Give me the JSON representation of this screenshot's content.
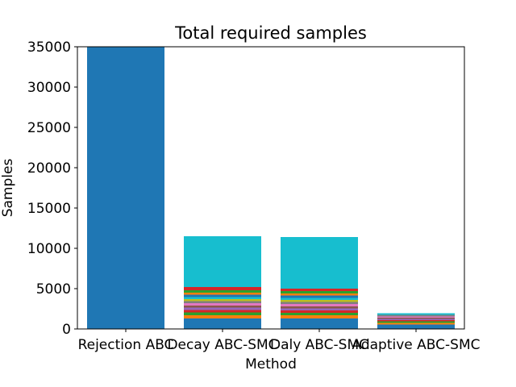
{
  "chart_data": {
    "type": "bar",
    "stacked": true,
    "title": "Total required samples",
    "xlabel": "Method",
    "ylabel": "Samples",
    "ylim": [
      0,
      35000
    ],
    "yticks": [
      0,
      5000,
      10000,
      15000,
      20000,
      25000,
      30000,
      35000
    ],
    "grid": false,
    "categories": [
      "Rejection ABC",
      "Decay ABC-SMC",
      "Daly ABC-SMC",
      "Adaptive ABC-SMC"
    ],
    "stacks": [
      [
        35200
      ],
      [
        1300,
        400,
        350,
        300,
        300,
        250,
        300,
        250,
        250,
        250,
        300,
        250,
        300,
        400,
        6300
      ],
      [
        1300,
        400,
        300,
        300,
        250,
        250,
        300,
        250,
        250,
        250,
        300,
        250,
        300,
        300,
        6400
      ],
      [
        550,
        200,
        200,
        150,
        150,
        150,
        150,
        200,
        200
      ]
    ],
    "colors": {
      "cycle": [
        "#1f77b4",
        "#ff7f0e",
        "#2ca02c",
        "#d62728",
        "#9467bd",
        "#8c564b",
        "#e377c2",
        "#7f7f7f",
        "#bcbd22",
        "#17becf"
      ],
      "top_segment": "#17becf"
    }
  }
}
